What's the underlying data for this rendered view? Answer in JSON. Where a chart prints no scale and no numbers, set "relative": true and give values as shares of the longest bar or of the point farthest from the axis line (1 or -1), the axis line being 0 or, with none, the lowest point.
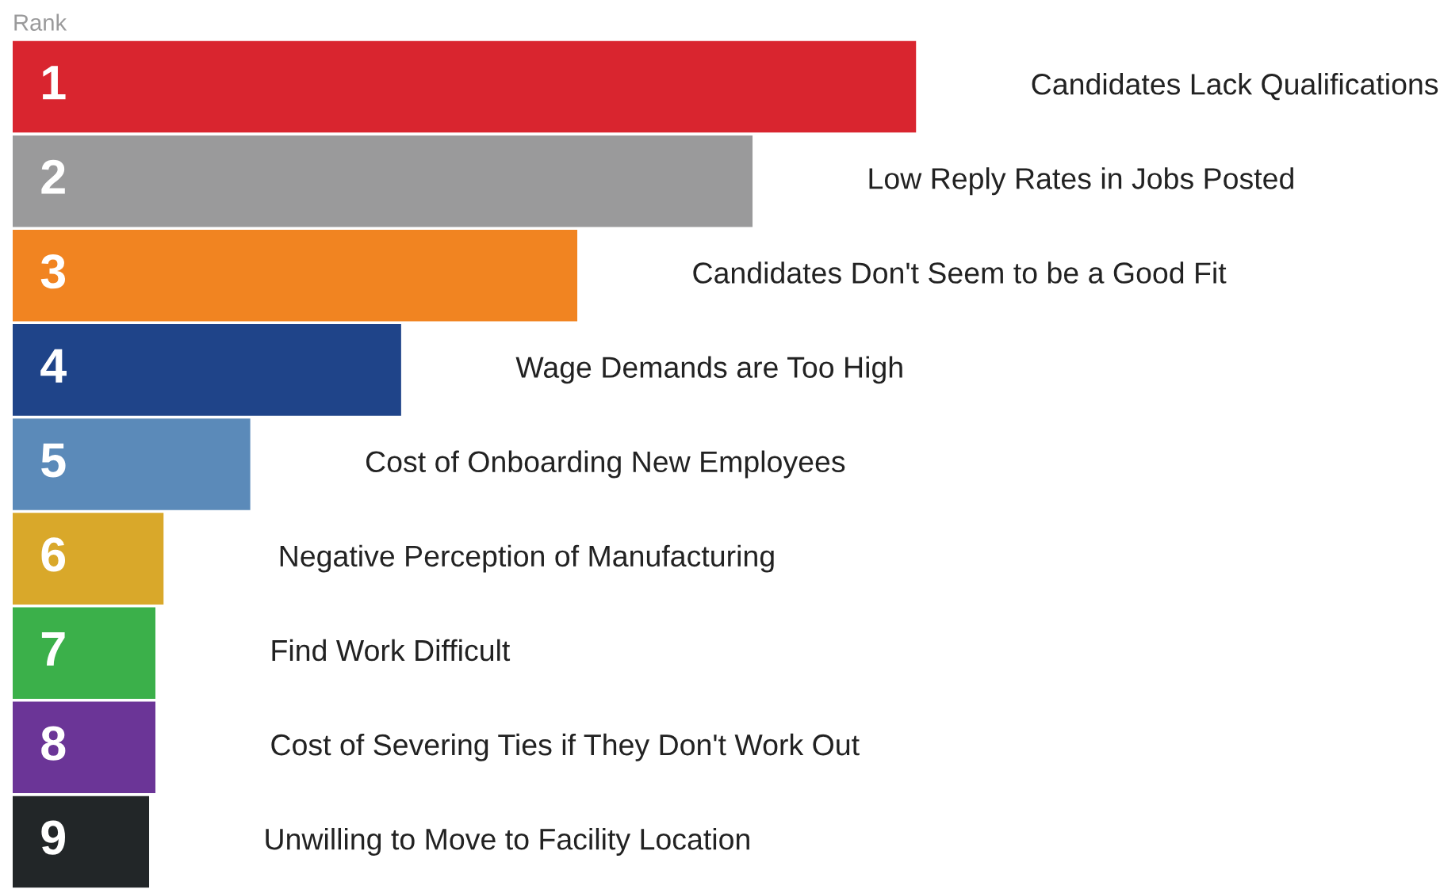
{
  "chart_data": {
    "type": "bar",
    "orientation": "horizontal",
    "relative": true,
    "ylabel": "Rank",
    "categories": [
      "1",
      "2",
      "3",
      "4",
      "5",
      "6",
      "7",
      "8",
      "9"
    ],
    "values": [
      1,
      0.819,
      0.625,
      0.43,
      0.263,
      0.167,
      0.158,
      0.158,
      0.151
    ],
    "colors": [
      "#d9252f",
      "#9a9a9b",
      "#f18421",
      "#1f4489",
      "#5b8ab9",
      "#d9a82a",
      "#3bb04a",
      "#6b3597",
      "#222628"
    ],
    "annotations": [
      "Candidates Lack Qualifications",
      "Low Reply Rates in Jobs Posted",
      "Candidates Don't Seem to be a Good Fit",
      "Wage Demands are Too High",
      "Cost of Onboarding New Employees",
      "Negative Perception of Manufacturing",
      "Find Work Difficult",
      "Cost of Severing Ties if They Don't Work Out",
      "Unwilling to Move to Facility Location"
    ]
  }
}
